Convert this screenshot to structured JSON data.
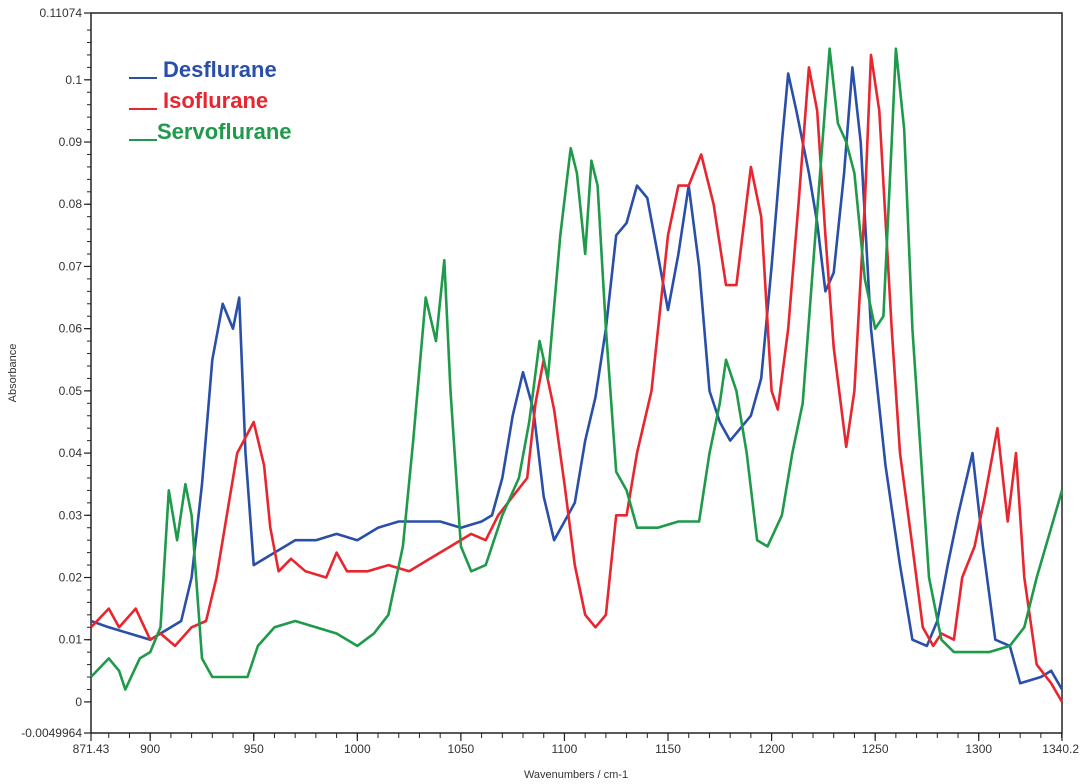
{
  "chart_data": {
    "type": "line",
    "title": "",
    "xlabel": "Wavenumbers / cm-1",
    "ylabel": "Absorbance",
    "xlim": [
      871.43,
      1340.2
    ],
    "ylim": [
      -0.0049964,
      0.11074
    ],
    "x_tick_labels": [
      "871.43",
      "900",
      "950",
      "1000",
      "1050",
      "1100",
      "1150",
      "1200",
      "1250",
      "1300",
      "1340.2"
    ],
    "x_ticks": [
      871.43,
      900,
      950,
      1000,
      1050,
      1100,
      1150,
      1200,
      1250,
      1300,
      1340.2
    ],
    "y_tick_labels": [
      "0.11074",
      "0.1",
      "0.09",
      "0.08",
      "0.07",
      "0.06",
      "0.05",
      "0.04",
      "0.03",
      "0.02",
      "0.01",
      "0",
      "-0.0049964"
    ],
    "y_ticks": [
      0.11074,
      0.1,
      0.09,
      0.08,
      0.07,
      0.06,
      0.05,
      0.04,
      0.03,
      0.02,
      0.01,
      0,
      -0.0049964
    ],
    "grid": false,
    "legend_position": "top-left",
    "series": [
      {
        "name": "Desflurane",
        "color": "#2a4fa8",
        "x": [
          871.43,
          880,
          890,
          900,
          905,
          915,
          920,
          925,
          930,
          935,
          940,
          943,
          946,
          950,
          960,
          970,
          980,
          990,
          1000,
          1010,
          1020,
          1030,
          1040,
          1050,
          1060,
          1065,
          1070,
          1075,
          1080,
          1085,
          1090,
          1095,
          1100,
          1105,
          1110,
          1115,
          1120,
          1125,
          1130,
          1135,
          1140,
          1145,
          1150,
          1155,
          1160,
          1165,
          1170,
          1175,
          1180,
          1185,
          1190,
          1195,
          1200,
          1205,
          1208,
          1212,
          1218,
          1222,
          1226,
          1230,
          1235,
          1239,
          1243,
          1248,
          1255,
          1262,
          1268,
          1275,
          1280,
          1285,
          1290,
          1297,
          1302,
          1308,
          1315,
          1320,
          1330,
          1335,
          1340.2
        ],
        "y": [
          0.013,
          0.012,
          0.011,
          0.01,
          0.011,
          0.013,
          0.02,
          0.035,
          0.055,
          0.064,
          0.06,
          0.065,
          0.04,
          0.022,
          0.024,
          0.026,
          0.026,
          0.027,
          0.026,
          0.028,
          0.029,
          0.029,
          0.029,
          0.028,
          0.029,
          0.03,
          0.036,
          0.046,
          0.053,
          0.047,
          0.033,
          0.026,
          0.029,
          0.032,
          0.042,
          0.049,
          0.06,
          0.075,
          0.077,
          0.083,
          0.081,
          0.072,
          0.063,
          0.072,
          0.083,
          0.07,
          0.05,
          0.045,
          0.042,
          0.044,
          0.046,
          0.052,
          0.07,
          0.09,
          0.101,
          0.095,
          0.085,
          0.077,
          0.066,
          0.069,
          0.085,
          0.102,
          0.09,
          0.06,
          0.038,
          0.022,
          0.01,
          0.009,
          0.013,
          0.022,
          0.03,
          0.04,
          0.025,
          0.01,
          0.009,
          0.003,
          0.004,
          0.005,
          0.002
        ]
      },
      {
        "name": "Isoflurane",
        "color": "#e8262f",
        "x": [
          871.43,
          880,
          885,
          893,
          900,
          905,
          912,
          920,
          927,
          932,
          937,
          942,
          950,
          955,
          958,
          962,
          968,
          975,
          985,
          990,
          995,
          1005,
          1015,
          1025,
          1035,
          1045,
          1055,
          1062,
          1068,
          1075,
          1082,
          1086,
          1090,
          1095,
          1100,
          1105,
          1110,
          1115,
          1120,
          1125,
          1130,
          1135,
          1142,
          1150,
          1155,
          1160,
          1166,
          1172,
          1178,
          1183,
          1190,
          1195,
          1200,
          1203,
          1208,
          1213,
          1218,
          1222,
          1226,
          1230,
          1236,
          1240,
          1245,
          1248,
          1252,
          1258,
          1262,
          1268,
          1273,
          1278,
          1282,
          1288,
          1292,
          1298,
          1303,
          1309,
          1314,
          1318,
          1322,
          1328,
          1335,
          1340.2
        ],
        "y": [
          0.012,
          0.015,
          0.012,
          0.015,
          0.01,
          0.011,
          0.009,
          0.012,
          0.013,
          0.02,
          0.03,
          0.04,
          0.045,
          0.038,
          0.028,
          0.021,
          0.023,
          0.021,
          0.02,
          0.024,
          0.021,
          0.021,
          0.022,
          0.021,
          0.023,
          0.025,
          0.027,
          0.026,
          0.03,
          0.033,
          0.036,
          0.048,
          0.055,
          0.047,
          0.035,
          0.022,
          0.014,
          0.012,
          0.014,
          0.03,
          0.03,
          0.04,
          0.05,
          0.075,
          0.083,
          0.083,
          0.088,
          0.08,
          0.067,
          0.067,
          0.086,
          0.078,
          0.05,
          0.047,
          0.06,
          0.08,
          0.102,
          0.095,
          0.075,
          0.057,
          0.041,
          0.05,
          0.08,
          0.104,
          0.095,
          0.06,
          0.04,
          0.025,
          0.012,
          0.009,
          0.011,
          0.01,
          0.02,
          0.025,
          0.033,
          0.044,
          0.029,
          0.04,
          0.02,
          0.006,
          0.003,
          0.0
        ]
      },
      {
        "name": "Servoflurane",
        "color": "#1f9a4a",
        "x": [
          871.43,
          880,
          885,
          888,
          895,
          900,
          905,
          909,
          913,
          917,
          920,
          925,
          930,
          940,
          947,
          952,
          960,
          970,
          980,
          990,
          1000,
          1008,
          1015,
          1022,
          1027,
          1033,
          1038,
          1042,
          1045,
          1050,
          1055,
          1062,
          1070,
          1078,
          1083,
          1088,
          1092,
          1098,
          1103,
          1106,
          1110,
          1113,
          1116,
          1120,
          1125,
          1130,
          1135,
          1145,
          1155,
          1165,
          1170,
          1175,
          1178,
          1183,
          1188,
          1193,
          1198,
          1205,
          1210,
          1215,
          1220,
          1225,
          1228,
          1232,
          1236,
          1240,
          1245,
          1250,
          1254,
          1258,
          1260,
          1264,
          1268,
          1272,
          1276,
          1282,
          1288,
          1295,
          1305,
          1315,
          1322,
          1328,
          1335,
          1340.2
        ],
        "y": [
          0.004,
          0.007,
          0.005,
          0.002,
          0.007,
          0.008,
          0.012,
          0.034,
          0.026,
          0.035,
          0.03,
          0.007,
          0.004,
          0.004,
          0.004,
          0.009,
          0.012,
          0.013,
          0.012,
          0.011,
          0.009,
          0.011,
          0.014,
          0.025,
          0.042,
          0.065,
          0.058,
          0.071,
          0.05,
          0.025,
          0.021,
          0.022,
          0.03,
          0.036,
          0.045,
          0.058,
          0.052,
          0.075,
          0.089,
          0.085,
          0.072,
          0.087,
          0.083,
          0.06,
          0.037,
          0.034,
          0.028,
          0.028,
          0.029,
          0.029,
          0.04,
          0.048,
          0.055,
          0.05,
          0.04,
          0.026,
          0.025,
          0.03,
          0.04,
          0.048,
          0.07,
          0.092,
          0.105,
          0.093,
          0.09,
          0.085,
          0.068,
          0.06,
          0.062,
          0.09,
          0.105,
          0.092,
          0.06,
          0.04,
          0.02,
          0.01,
          0.008,
          0.008,
          0.008,
          0.009,
          0.012,
          0.02,
          0.028,
          0.034
        ]
      }
    ]
  }
}
